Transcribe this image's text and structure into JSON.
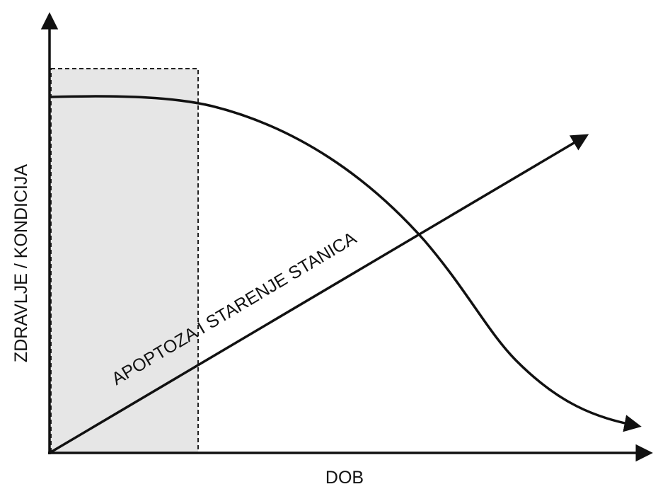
{
  "axes": {
    "y_label": "ZDRAVLJE / KONDICIJA",
    "x_label": "DOB"
  },
  "curves": {
    "line_label": "APOPTOZA I STARENJE STANICA"
  }
}
